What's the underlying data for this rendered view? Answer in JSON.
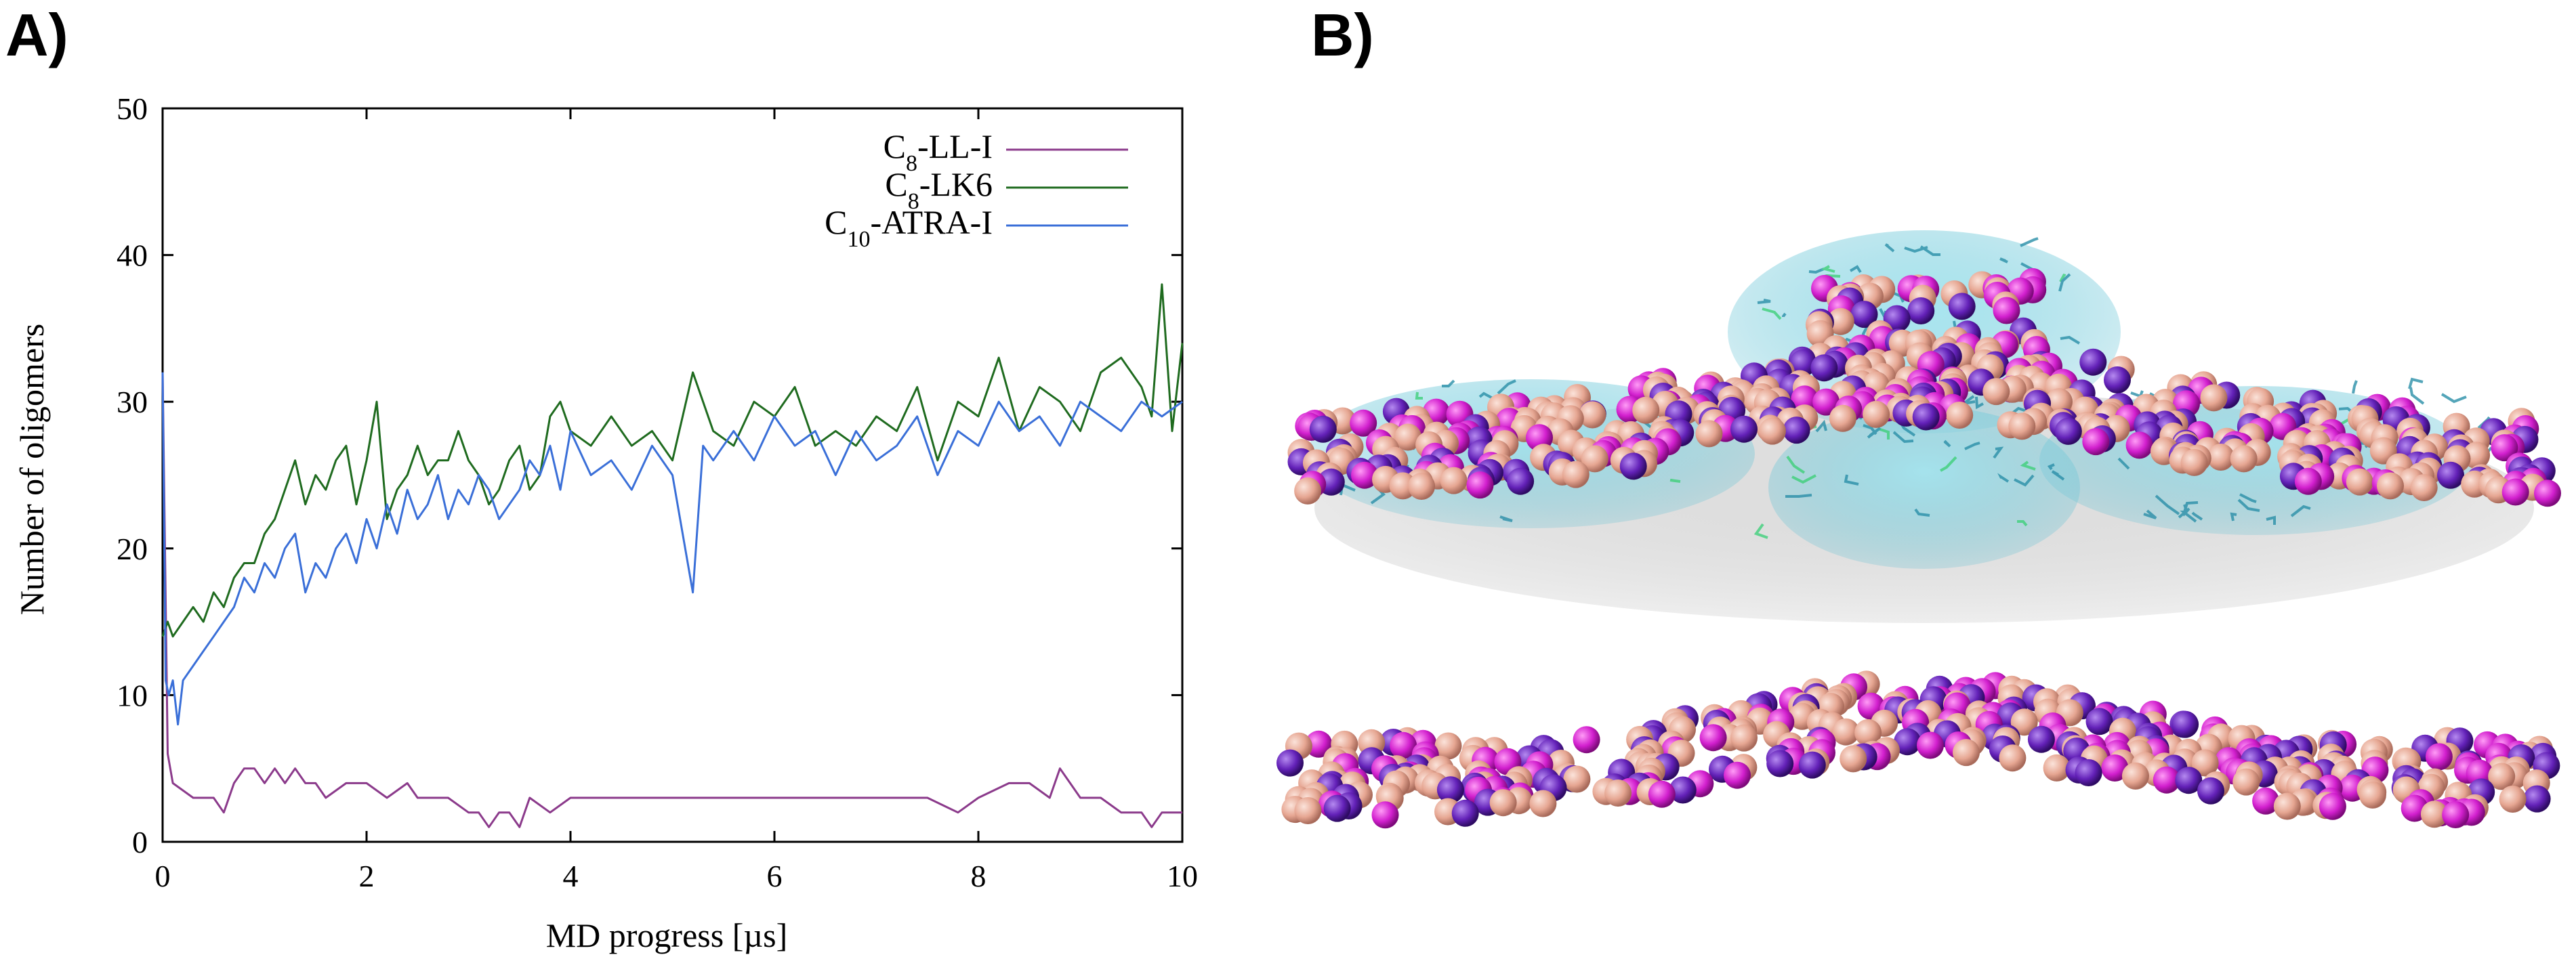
{
  "panels": {
    "a_label": "A)",
    "b_label": "B)"
  },
  "colors": {
    "c8_ll_i": "#8B3A8B",
    "c8_lk6": "#1F6B1F",
    "c10_atra_i": "#3A6FD8",
    "axis": "#000000"
  },
  "chart_data": {
    "type": "line",
    "title": "",
    "xlabel": "MD progress [µs]",
    "ylabel": "Number of oligomers",
    "xlim": [
      0,
      10
    ],
    "ylim": [
      0,
      50
    ],
    "xticks": [
      0,
      2,
      4,
      6,
      8,
      10
    ],
    "yticks": [
      0,
      10,
      20,
      30,
      40,
      50
    ],
    "legend_position": "top-right",
    "series": [
      {
        "name": "C8-LL-I",
        "legend_main": "C",
        "legend_sub": "8",
        "legend_rest": "-LL-I",
        "color": "#8B3A8B",
        "x": [
          0,
          0.05,
          0.1,
          0.3,
          0.5,
          0.6,
          0.7,
          0.8,
          0.9,
          1.0,
          1.1,
          1.2,
          1.3,
          1.4,
          1.5,
          1.6,
          1.8,
          2.0,
          2.2,
          2.4,
          2.5,
          2.6,
          2.8,
          3.0,
          3.1,
          3.2,
          3.3,
          3.4,
          3.5,
          3.6,
          3.8,
          4.0,
          4.5,
          5.0,
          5.5,
          6.0,
          6.5,
          7.0,
          7.5,
          7.8,
          8.0,
          8.3,
          8.5,
          8.7,
          8.8,
          8.9,
          9.0,
          9.2,
          9.4,
          9.6,
          9.7,
          9.8,
          10.0
        ],
        "values": [
          32,
          6,
          4,
          3,
          3,
          2,
          4,
          5,
          5,
          4,
          5,
          4,
          5,
          4,
          4,
          3,
          4,
          4,
          3,
          4,
          3,
          3,
          3,
          2,
          2,
          1,
          2,
          2,
          1,
          3,
          2,
          3,
          3,
          3,
          3,
          3,
          3,
          3,
          3,
          2,
          3,
          4,
          4,
          3,
          5,
          4,
          3,
          3,
          2,
          2,
          1,
          2,
          2
        ]
      },
      {
        "name": "C8-LK6",
        "legend_main": "C",
        "legend_sub": "8",
        "legend_rest": "-LK6",
        "color": "#1F6B1F",
        "x": [
          0,
          0.05,
          0.1,
          0.2,
          0.3,
          0.4,
          0.5,
          0.6,
          0.7,
          0.8,
          0.9,
          1.0,
          1.1,
          1.2,
          1.3,
          1.4,
          1.5,
          1.6,
          1.7,
          1.8,
          1.9,
          2.0,
          2.1,
          2.2,
          2.3,
          2.4,
          2.5,
          2.6,
          2.7,
          2.8,
          2.9,
          3.0,
          3.1,
          3.2,
          3.3,
          3.4,
          3.5,
          3.6,
          3.7,
          3.8,
          3.9,
          4.0,
          4.2,
          4.4,
          4.6,
          4.8,
          5.0,
          5.2,
          5.4,
          5.6,
          5.8,
          6.0,
          6.2,
          6.4,
          6.6,
          6.8,
          7.0,
          7.2,
          7.4,
          7.6,
          7.8,
          8.0,
          8.2,
          8.4,
          8.6,
          8.8,
          9.0,
          9.2,
          9.4,
          9.6,
          9.7,
          9.8,
          9.9,
          10.0
        ],
        "values": [
          14,
          15,
          14,
          15,
          16,
          15,
          17,
          16,
          18,
          19,
          19,
          21,
          22,
          24,
          26,
          23,
          25,
          24,
          26,
          27,
          23,
          26,
          30,
          22,
          24,
          25,
          27,
          25,
          26,
          26,
          28,
          26,
          25,
          23,
          24,
          26,
          27,
          24,
          25,
          29,
          30,
          28,
          27,
          29,
          27,
          28,
          26,
          32,
          28,
          27,
          30,
          29,
          31,
          27,
          28,
          27,
          29,
          28,
          31,
          26,
          30,
          29,
          33,
          28,
          31,
          30,
          28,
          32,
          33,
          31,
          29,
          38,
          28,
          34
        ]
      },
      {
        "name": "C10-ATRA-I",
        "legend_main": "C",
        "legend_sub": "10",
        "legend_rest": "-ATRA-I",
        "color": "#3A6FD8",
        "x": [
          0,
          0.03,
          0.06,
          0.1,
          0.15,
          0.2,
          0.3,
          0.4,
          0.5,
          0.6,
          0.7,
          0.8,
          0.9,
          1.0,
          1.1,
          1.2,
          1.3,
          1.4,
          1.5,
          1.6,
          1.7,
          1.8,
          1.9,
          2.0,
          2.1,
          2.2,
          2.3,
          2.4,
          2.5,
          2.6,
          2.7,
          2.8,
          2.9,
          3.0,
          3.1,
          3.2,
          3.3,
          3.4,
          3.5,
          3.6,
          3.7,
          3.8,
          3.9,
          4.0,
          4.2,
          4.4,
          4.6,
          4.8,
          5.0,
          5.2,
          5.3,
          5.4,
          5.6,
          5.8,
          6.0,
          6.2,
          6.4,
          6.6,
          6.8,
          7.0,
          7.2,
          7.4,
          7.6,
          7.8,
          8.0,
          8.2,
          8.4,
          8.6,
          8.8,
          9.0,
          9.2,
          9.4,
          9.6,
          9.8,
          10.0
        ],
        "values": [
          32,
          11,
          10,
          11,
          8,
          11,
          12,
          13,
          14,
          15,
          16,
          18,
          17,
          19,
          18,
          20,
          21,
          17,
          19,
          18,
          20,
          21,
          19,
          22,
          20,
          23,
          21,
          24,
          22,
          23,
          25,
          22,
          24,
          23,
          25,
          24,
          22,
          23,
          24,
          26,
          25,
          27,
          24,
          28,
          25,
          26,
          24,
          27,
          25,
          17,
          27,
          26,
          28,
          26,
          29,
          27,
          28,
          25,
          28,
          26,
          27,
          29,
          25,
          28,
          27,
          30,
          28,
          29,
          27,
          30,
          29,
          28,
          30,
          29,
          30
        ]
      }
    ]
  }
}
